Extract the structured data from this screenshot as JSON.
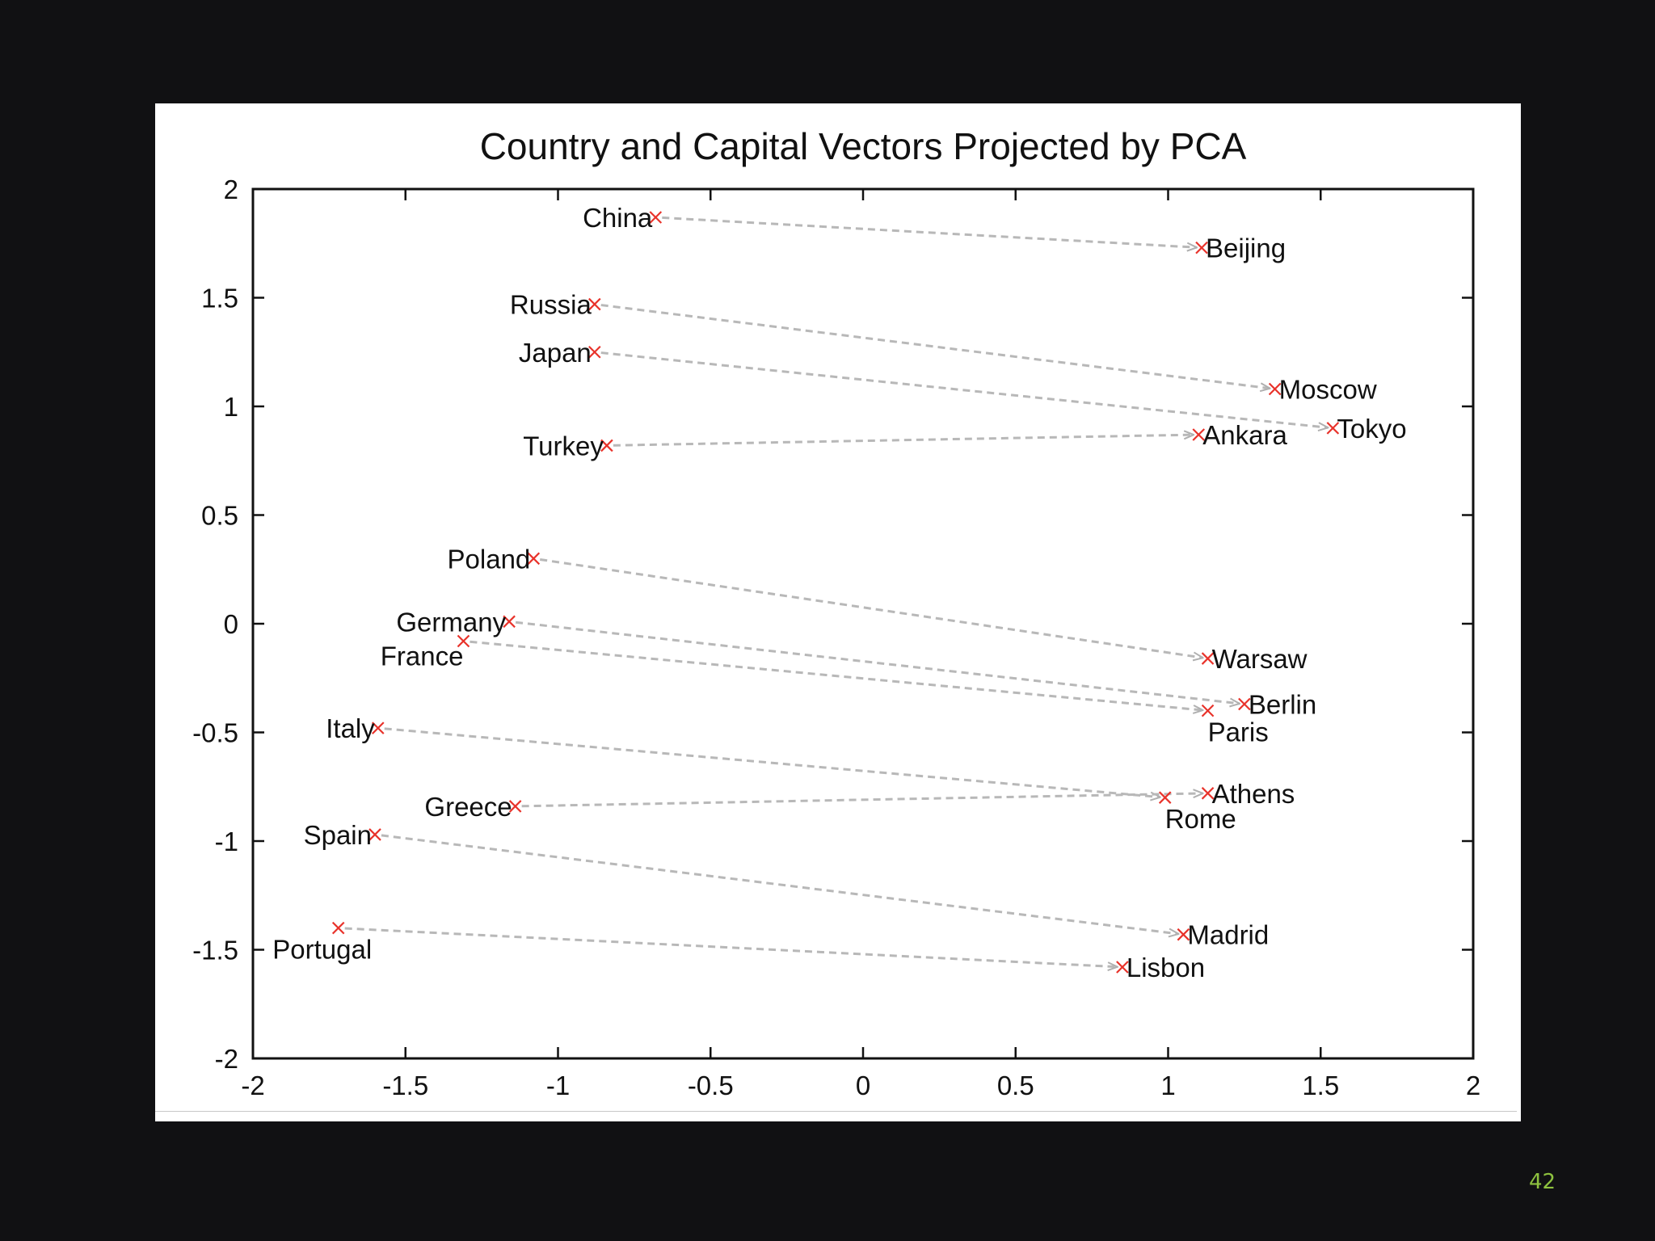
{
  "slide": {
    "page_number": "42"
  },
  "colors": {
    "background": "#111113",
    "panel": "#ffffff",
    "marker": "#e8322a",
    "arrow": "#b8b8b8",
    "page_number": "#8ec23f"
  },
  "chart_data": {
    "type": "scatter",
    "title": "Country and Capital Vectors Projected by PCA",
    "xlabel": "",
    "ylabel": "",
    "xlim": [
      -2,
      2
    ],
    "ylim": [
      -2,
      2
    ],
    "xticks": [
      "-2",
      "-1.5",
      "-1",
      "-0.5",
      "0",
      "0.5",
      "1",
      "1.5",
      "2"
    ],
    "yticks": [
      "2",
      "1.5",
      "1",
      "0.5",
      "0",
      "-0.5",
      "-1",
      "-1.5",
      "-2"
    ],
    "grid": false,
    "points": [
      {
        "label": "China",
        "x": -0.68,
        "y": 1.87,
        "label_pos": "left"
      },
      {
        "label": "Beijing",
        "x": 1.11,
        "y": 1.73,
        "label_pos": "right"
      },
      {
        "label": "Russia",
        "x": -0.88,
        "y": 1.47,
        "label_pos": "left"
      },
      {
        "label": "Moscow",
        "x": 1.35,
        "y": 1.08,
        "label_pos": "right"
      },
      {
        "label": "Japan",
        "x": -0.88,
        "y": 1.25,
        "label_pos": "left"
      },
      {
        "label": "Tokyo",
        "x": 1.54,
        "y": 0.9,
        "label_pos": "right"
      },
      {
        "label": "Turkey",
        "x": -0.84,
        "y": 0.82,
        "label_pos": "left"
      },
      {
        "label": "Ankara",
        "x": 1.1,
        "y": 0.87,
        "label_pos": "right"
      },
      {
        "label": "Poland",
        "x": -1.08,
        "y": 0.3,
        "label_pos": "left"
      },
      {
        "label": "Warsaw",
        "x": 1.13,
        "y": -0.16,
        "label_pos": "right"
      },
      {
        "label": "Germany",
        "x": -1.16,
        "y": 0.01,
        "label_pos": "left"
      },
      {
        "label": "Berlin",
        "x": 1.25,
        "y": -0.37,
        "label_pos": "right"
      },
      {
        "label": "France",
        "x": -1.31,
        "y": -0.08,
        "label_pos": "below-left"
      },
      {
        "label": "Paris",
        "x": 1.13,
        "y": -0.4,
        "label_pos": "below-right"
      },
      {
        "label": "Italy",
        "x": -1.59,
        "y": -0.48,
        "label_pos": "left"
      },
      {
        "label": "Rome",
        "x": 0.99,
        "y": -0.8,
        "label_pos": "below-right"
      },
      {
        "label": "Greece",
        "x": -1.14,
        "y": -0.84,
        "label_pos": "left"
      },
      {
        "label": "Athens",
        "x": 1.13,
        "y": -0.78,
        "label_pos": "right"
      },
      {
        "label": "Spain",
        "x": -1.6,
        "y": -0.97,
        "label_pos": "left"
      },
      {
        "label": "Madrid",
        "x": 1.05,
        "y": -1.43,
        "label_pos": "right"
      },
      {
        "label": "Portugal",
        "x": -1.72,
        "y": -1.4,
        "label_pos": "below"
      },
      {
        "label": "Lisbon",
        "x": 0.85,
        "y": -1.58,
        "label_pos": "right"
      }
    ],
    "arrows": [
      {
        "from": "China",
        "to": "Beijing"
      },
      {
        "from": "Russia",
        "to": "Moscow"
      },
      {
        "from": "Japan",
        "to": "Tokyo"
      },
      {
        "from": "Turkey",
        "to": "Ankara"
      },
      {
        "from": "Poland",
        "to": "Warsaw"
      },
      {
        "from": "Germany",
        "to": "Berlin"
      },
      {
        "from": "France",
        "to": "Paris"
      },
      {
        "from": "Italy",
        "to": "Rome"
      },
      {
        "from": "Greece",
        "to": "Athens"
      },
      {
        "from": "Spain",
        "to": "Madrid"
      },
      {
        "from": "Portugal",
        "to": "Lisbon"
      }
    ]
  }
}
